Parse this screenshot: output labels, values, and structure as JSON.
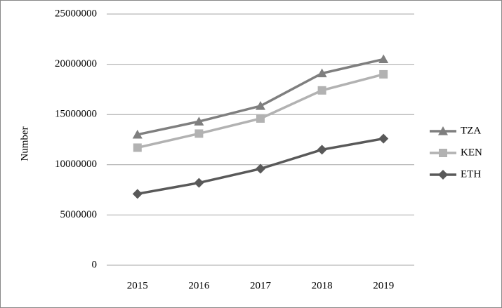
{
  "chart_data": {
    "type": "line",
    "y_label": "Number",
    "categories": [
      "2015",
      "2016",
      "2017",
      "2018",
      "2019"
    ],
    "series": [
      {
        "name": "TZA",
        "color": "#7f7f7f",
        "marker": "triangle",
        "values": [
          13000000,
          14300000,
          15850000,
          19100000,
          20500000
        ]
      },
      {
        "name": "KEN",
        "color": "#b2b2b2",
        "marker": "square",
        "values": [
          11700000,
          13100000,
          14600000,
          17400000,
          19000000
        ]
      },
      {
        "name": "ETH",
        "color": "#595959",
        "marker": "diamond",
        "values": [
          7100000,
          8200000,
          9600000,
          11500000,
          12600000
        ]
      }
    ],
    "ylim": [
      0,
      25000000
    ],
    "yticks": [
      0,
      5000000,
      10000000,
      15000000,
      20000000,
      25000000
    ],
    "grid": true,
    "legend": "right"
  }
}
